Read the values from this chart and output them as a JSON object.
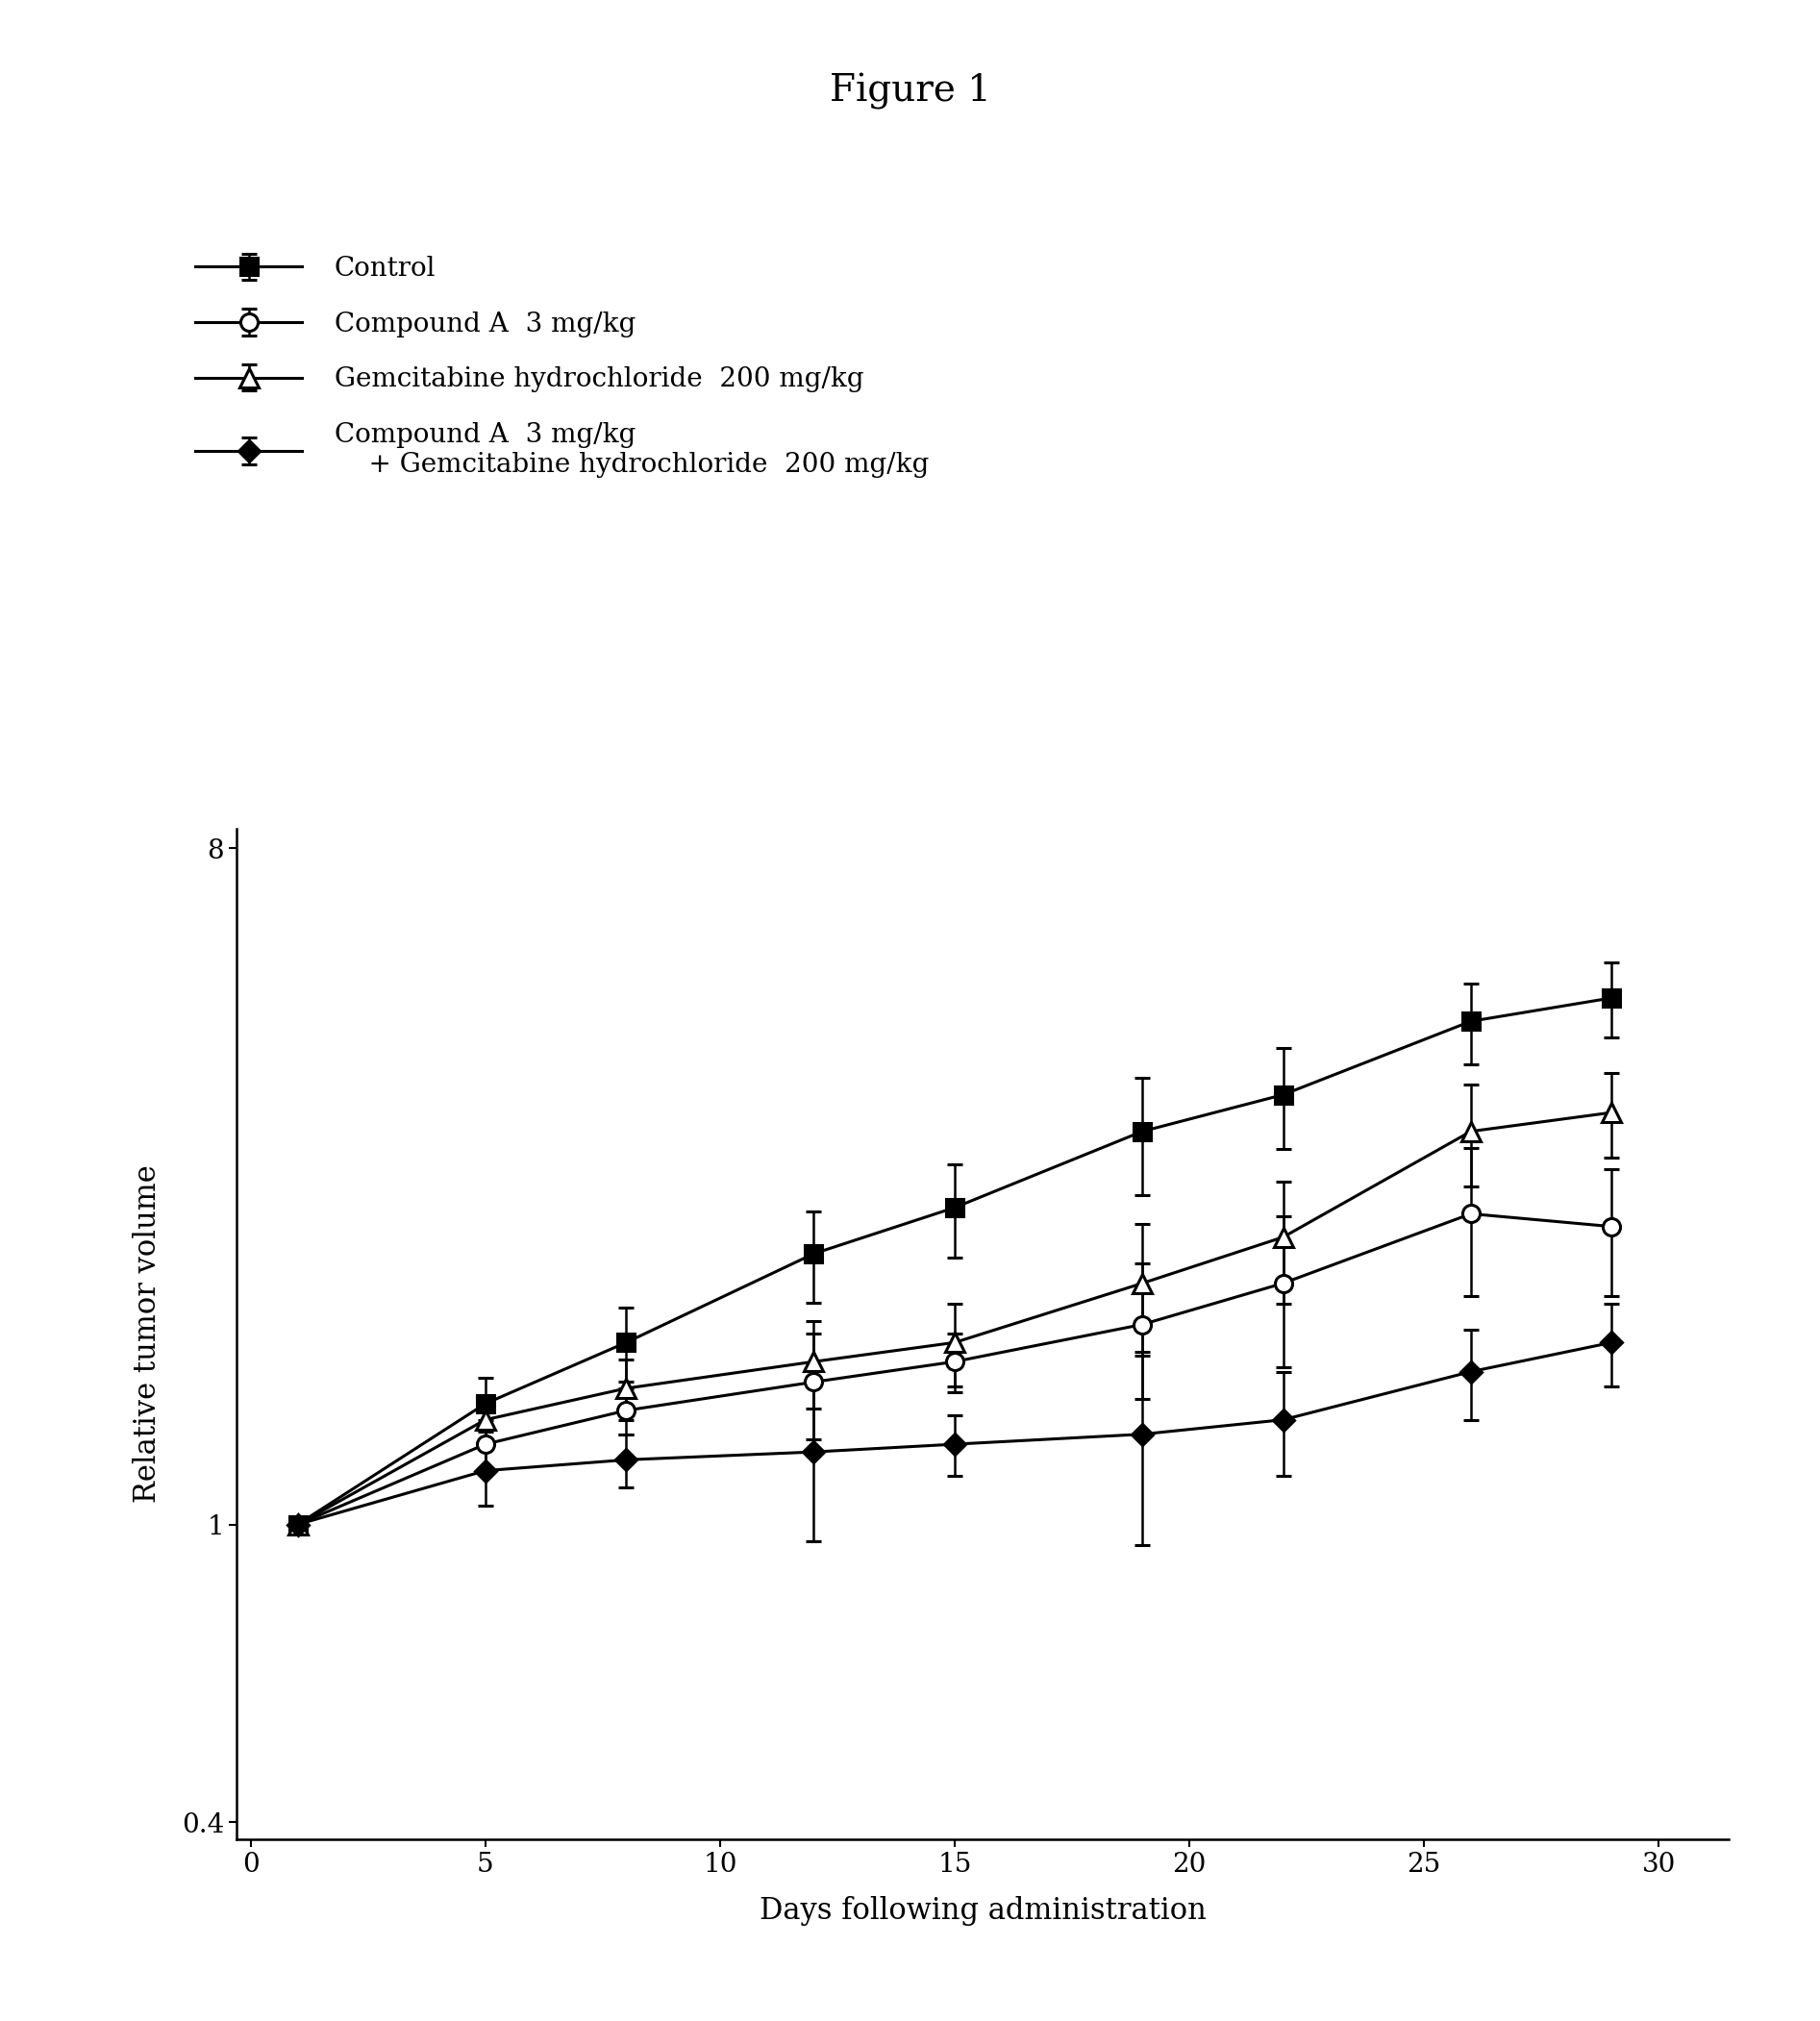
{
  "title": "Figure 1",
  "xlabel": "Days following administration",
  "ylabel": "Relative tumor volume",
  "x_days": [
    1,
    5,
    8,
    12,
    15,
    19,
    22,
    26,
    29
  ],
  "series": [
    {
      "key": "control",
      "label": "Control",
      "y": [
        1.0,
        1.45,
        1.75,
        2.3,
        2.65,
        3.35,
        3.75,
        4.7,
        5.05
      ],
      "yerr": [
        0.0,
        0.12,
        0.2,
        0.32,
        0.38,
        0.6,
        0.58,
        0.58,
        0.58
      ],
      "marker": "s",
      "fillstyle": "full"
    },
    {
      "key": "compound_a",
      "label": "Compound A  3 mg/kg",
      "y": [
        1.0,
        1.28,
        1.42,
        1.55,
        1.65,
        1.85,
        2.1,
        2.6,
        2.5
      ],
      "yerr": [
        0.0,
        0.1,
        0.1,
        0.25,
        0.15,
        0.38,
        0.48,
        0.58,
        0.48
      ],
      "marker": "o",
      "fillstyle": "none"
    },
    {
      "key": "gemcitabine",
      "label": "Gemcitabine hydrochloride  200 mg/kg",
      "y": [
        1.0,
        1.38,
        1.52,
        1.65,
        1.75,
        2.1,
        2.42,
        3.35,
        3.55
      ],
      "yerr": [
        0.0,
        0.1,
        0.14,
        0.22,
        0.22,
        0.42,
        0.45,
        0.52,
        0.46
      ],
      "marker": "^",
      "fillstyle": "none"
    },
    {
      "key": "combination",
      "label": "Compound A  3 mg/kg\n    + Gemcitabine hydrochloride  200 mg/kg",
      "y": [
        1.0,
        1.18,
        1.22,
        1.25,
        1.28,
        1.32,
        1.38,
        1.6,
        1.75
      ],
      "yerr": [
        0.0,
        0.12,
        0.1,
        0.3,
        0.12,
        0.38,
        0.22,
        0.22,
        0.22
      ],
      "marker": "D",
      "fillstyle": "full"
    }
  ],
  "ylim": [
    0.38,
    8.5
  ],
  "xlim": [
    -0.3,
    31.5
  ],
  "xticks": [
    0,
    5,
    10,
    15,
    20,
    25,
    30
  ],
  "ytick_values": [
    0.4,
    1.0,
    8.0
  ],
  "ytick_labels": [
    "0.4",
    "1",
    "8"
  ],
  "background_color": "#ffffff",
  "title_fontsize": 28,
  "label_fontsize": 22,
  "tick_fontsize": 20,
  "legend_fontsize": 20
}
